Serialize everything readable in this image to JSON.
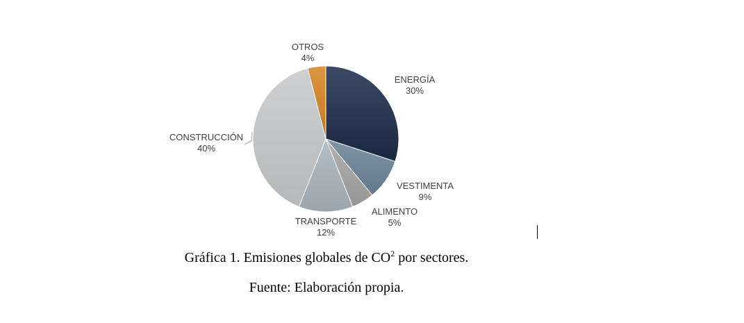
{
  "chart_data": {
    "type": "pie",
    "title": "",
    "unit": "%",
    "slices": [
      {
        "label": "ENERGÍA",
        "value": 30,
        "value_label": "30%",
        "color": "#1b2a47"
      },
      {
        "label": "VESTIMENTA",
        "value": 9,
        "value_label": "9%",
        "color": "#6a8296"
      },
      {
        "label": "ALIMENTO",
        "value": 5,
        "value_label": "5%",
        "color": "#a3a3a3"
      },
      {
        "label": "TRANSPORTE",
        "value": 12,
        "value_label": "12%",
        "color": "#a7b3bc"
      },
      {
        "label": "CONSTRUCCIÓN",
        "value": 40,
        "value_label": "40%",
        "color": "#c5c8c9"
      },
      {
        "label": "OTROS",
        "value": 4,
        "value_label": "4%",
        "color": "#d5841e"
      }
    ],
    "start": "12 o'clock",
    "direction": "clockwise",
    "legend": "none"
  },
  "caption": {
    "prefix": "Gráfica 1. Emisiones globales de CO",
    "superscript": "2",
    "suffix": " por sectores."
  },
  "source": "Fuente: Elaboración propia."
}
